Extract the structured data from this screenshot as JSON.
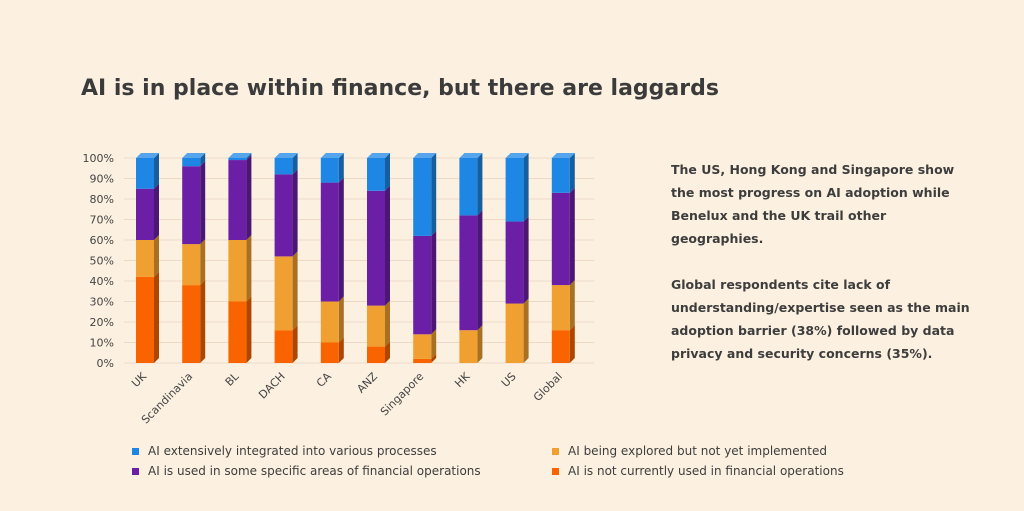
{
  "title": "AI is in place within finance, but there are laggards",
  "side_text": {
    "paragraph1": "The US, Hong Kong and Singapore show the most progress on AI adoption while Benelux and the UK  trail other geographies.",
    "paragraph2": "Global respondents cite lack of understanding/expertise seen as the main adoption barrier (38%) followed by data privacy and security concerns (35%)."
  },
  "legend": [
    {
      "label": "AI extensively integrated into various processes",
      "color": "#1e87e5"
    },
    {
      "label": "AI being explored but not yet implemented",
      "color": "#f0a030"
    },
    {
      "label": "AI is used in some specific areas of financial operations",
      "color": "#6b1fa6"
    },
    {
      "label": "AI is not currently used in financial operations",
      "color": "#fa6400"
    }
  ],
  "chart_data": {
    "type": "bar",
    "stacked": true,
    "categories": [
      "UK",
      "Scandinavia",
      "BL",
      "DACH",
      "CA",
      "ANZ",
      "Singapore",
      "HK",
      "US",
      "Global"
    ],
    "yticks": [
      "0%",
      "10%",
      "20%",
      "30%",
      "40%",
      "50%",
      "60%",
      "70%",
      "80%",
      "90%",
      "100%"
    ],
    "ylim": [
      0,
      100
    ],
    "grid": true,
    "series": [
      {
        "name": "AI is not currently used in financial operations",
        "color": "#fa6400",
        "values": [
          42,
          38,
          30,
          16,
          10,
          8,
          2,
          0,
          0,
          16
        ]
      },
      {
        "name": "AI being explored but not yet implemented",
        "color": "#f0a030",
        "values": [
          18,
          20,
          30,
          36,
          20,
          20,
          12,
          16,
          29,
          22
        ]
      },
      {
        "name": "AI is used in some specific areas of financial operations",
        "color": "#6b1fa6",
        "values": [
          25,
          38,
          39,
          40,
          58,
          56,
          48,
          56,
          40,
          45
        ]
      },
      {
        "name": "AI extensively integrated into various processes",
        "color": "#1e87e5",
        "values": [
          15,
          4,
          1,
          8,
          12,
          16,
          38,
          28,
          31,
          17
        ]
      }
    ]
  }
}
